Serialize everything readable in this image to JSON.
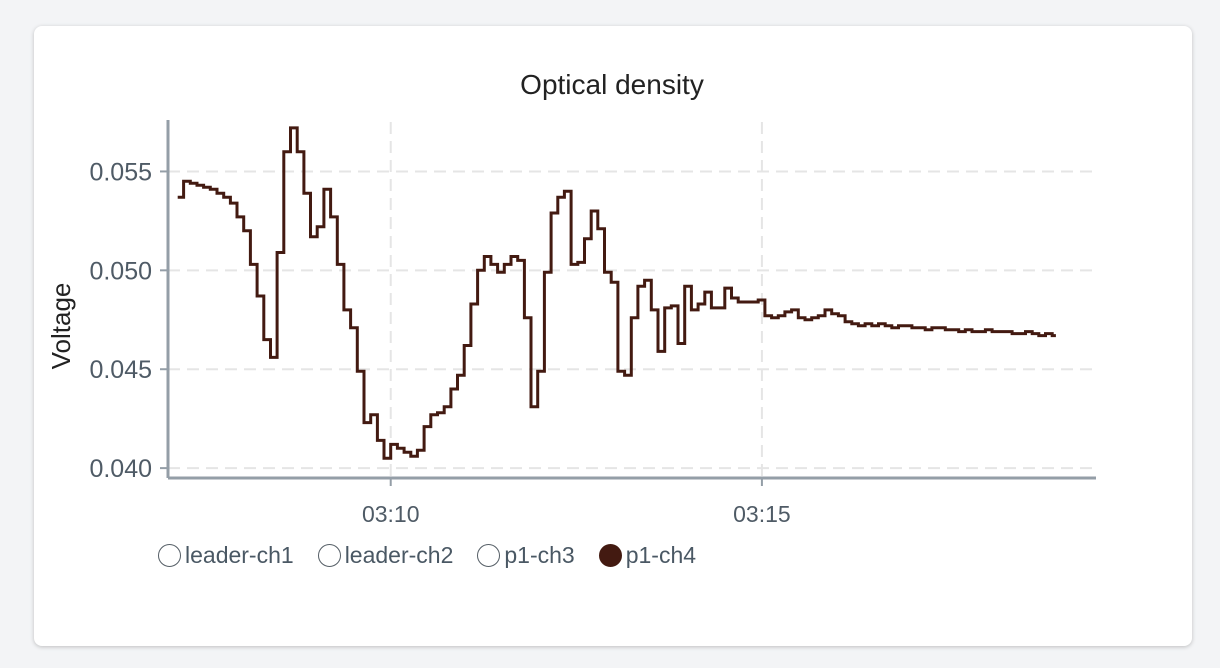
{
  "chart_data": {
    "type": "line",
    "title": "Optical density",
    "ylabel": "Voltage",
    "xlabel": "",
    "ylim": [
      0.0395,
      0.0575
    ],
    "xlim_minutes": [
      187,
      199.5
    ],
    "y_ticks": [
      {
        "value": 0.04,
        "label": "0.040"
      },
      {
        "value": 0.045,
        "label": "0.045"
      },
      {
        "value": 0.05,
        "label": "0.050"
      },
      {
        "value": 0.055,
        "label": "0.055"
      }
    ],
    "x_ticks": [
      {
        "minute": 190,
        "label": "03:10"
      },
      {
        "minute": 195,
        "label": "03:15"
      }
    ],
    "grid": true,
    "legend_position": "bottom-left",
    "series": [
      {
        "name": "p1-ch4",
        "color": "#431a11",
        "step": true,
        "points": [
          [
            187.13,
            0.0537
          ],
          [
            187.21,
            0.0545
          ],
          [
            187.3,
            0.0544
          ],
          [
            187.39,
            0.0543
          ],
          [
            187.48,
            0.0542
          ],
          [
            187.57,
            0.0541
          ],
          [
            187.66,
            0.0539
          ],
          [
            187.75,
            0.0537
          ],
          [
            187.84,
            0.0534
          ],
          [
            187.93,
            0.0527
          ],
          [
            188.02,
            0.052
          ],
          [
            188.11,
            0.0503
          ],
          [
            188.2,
            0.0487
          ],
          [
            188.29,
            0.0465
          ],
          [
            188.38,
            0.0456
          ],
          [
            188.47,
            0.0509
          ],
          [
            188.56,
            0.056
          ],
          [
            188.65,
            0.0572
          ],
          [
            188.74,
            0.056
          ],
          [
            188.83,
            0.0539
          ],
          [
            188.92,
            0.0517
          ],
          [
            189.01,
            0.0522
          ],
          [
            189.1,
            0.0541
          ],
          [
            189.19,
            0.0527
          ],
          [
            189.28,
            0.0503
          ],
          [
            189.37,
            0.048
          ],
          [
            189.46,
            0.0471
          ],
          [
            189.55,
            0.0449
          ],
          [
            189.64,
            0.0423
          ],
          [
            189.73,
            0.0427
          ],
          [
            189.82,
            0.0414
          ],
          [
            189.91,
            0.0405
          ],
          [
            190.0,
            0.0412
          ],
          [
            190.09,
            0.041
          ],
          [
            190.18,
            0.0408
          ],
          [
            190.27,
            0.0406
          ],
          [
            190.36,
            0.0409
          ],
          [
            190.45,
            0.0421
          ],
          [
            190.54,
            0.0427
          ],
          [
            190.63,
            0.0428
          ],
          [
            190.72,
            0.0431
          ],
          [
            190.81,
            0.044
          ],
          [
            190.9,
            0.0447
          ],
          [
            190.99,
            0.0462
          ],
          [
            191.08,
            0.0483
          ],
          [
            191.17,
            0.05
          ],
          [
            191.26,
            0.0507
          ],
          [
            191.35,
            0.0503
          ],
          [
            191.44,
            0.0499
          ],
          [
            191.53,
            0.0503
          ],
          [
            191.62,
            0.0507
          ],
          [
            191.71,
            0.0505
          ],
          [
            191.8,
            0.0476
          ],
          [
            191.89,
            0.0431
          ],
          [
            191.98,
            0.0449
          ],
          [
            192.07,
            0.0499
          ],
          [
            192.16,
            0.0529
          ],
          [
            192.25,
            0.0537
          ],
          [
            192.34,
            0.054
          ],
          [
            192.43,
            0.0503
          ],
          [
            192.52,
            0.0504
          ],
          [
            192.61,
            0.0516
          ],
          [
            192.7,
            0.053
          ],
          [
            192.79,
            0.0521
          ],
          [
            192.88,
            0.0499
          ],
          [
            192.97,
            0.0494
          ],
          [
            193.06,
            0.0449
          ],
          [
            193.15,
            0.0447
          ],
          [
            193.24,
            0.0476
          ],
          [
            193.33,
            0.0492
          ],
          [
            193.42,
            0.0495
          ],
          [
            193.51,
            0.048
          ],
          [
            193.6,
            0.0459
          ],
          [
            193.69,
            0.0481
          ],
          [
            193.78,
            0.0482
          ],
          [
            193.87,
            0.0463
          ],
          [
            193.96,
            0.0492
          ],
          [
            194.05,
            0.048
          ],
          [
            194.14,
            0.0483
          ],
          [
            194.23,
            0.0489
          ],
          [
            194.32,
            0.0481
          ],
          [
            194.41,
            0.0481
          ],
          [
            194.5,
            0.0491
          ],
          [
            194.59,
            0.0486
          ],
          [
            194.68,
            0.0484
          ],
          [
            194.77,
            0.0484
          ],
          [
            194.86,
            0.0484
          ],
          [
            194.95,
            0.0485
          ],
          [
            195.04,
            0.0477
          ],
          [
            195.13,
            0.0476
          ],
          [
            195.22,
            0.0477
          ],
          [
            195.31,
            0.0479
          ],
          [
            195.4,
            0.048
          ],
          [
            195.49,
            0.0476
          ],
          [
            195.58,
            0.0475
          ],
          [
            195.67,
            0.0476
          ],
          [
            195.76,
            0.0477
          ],
          [
            195.85,
            0.048
          ],
          [
            195.94,
            0.0478
          ],
          [
            196.03,
            0.0477
          ],
          [
            196.12,
            0.0474
          ],
          [
            196.21,
            0.0473
          ],
          [
            196.3,
            0.0472
          ],
          [
            196.39,
            0.0473
          ],
          [
            196.48,
            0.0472
          ],
          [
            196.57,
            0.0473
          ],
          [
            196.66,
            0.0472
          ],
          [
            196.75,
            0.0471
          ],
          [
            196.84,
            0.0472
          ],
          [
            196.93,
            0.0472
          ],
          [
            197.02,
            0.0471
          ],
          [
            197.11,
            0.0471
          ],
          [
            197.2,
            0.047
          ],
          [
            197.29,
            0.0471
          ],
          [
            197.38,
            0.0471
          ],
          [
            197.47,
            0.047
          ],
          [
            197.56,
            0.047
          ],
          [
            197.65,
            0.0469
          ],
          [
            197.74,
            0.047
          ],
          [
            197.83,
            0.0469
          ],
          [
            197.92,
            0.0469
          ],
          [
            198.01,
            0.047
          ],
          [
            198.1,
            0.0469
          ],
          [
            198.19,
            0.0469
          ],
          [
            198.28,
            0.0469
          ],
          [
            198.37,
            0.0468
          ],
          [
            198.46,
            0.0468
          ],
          [
            198.55,
            0.0469
          ],
          [
            198.64,
            0.0468
          ],
          [
            198.73,
            0.0467
          ],
          [
            198.82,
            0.0468
          ],
          [
            198.91,
            0.0467
          ],
          [
            198.96,
            0.0467
          ]
        ]
      }
    ]
  },
  "legend": [
    {
      "label": "leader-ch1",
      "active": false
    },
    {
      "label": "leader-ch2",
      "active": false
    },
    {
      "label": "p1-ch3",
      "active": false
    },
    {
      "label": "p1-ch4",
      "active": true
    }
  ],
  "colors": {
    "axis": "#949ea7",
    "grid": "#e5e5e5",
    "tick_text": "#4f5b66",
    "title_text": "#222222",
    "active_series": "#431a11"
  }
}
